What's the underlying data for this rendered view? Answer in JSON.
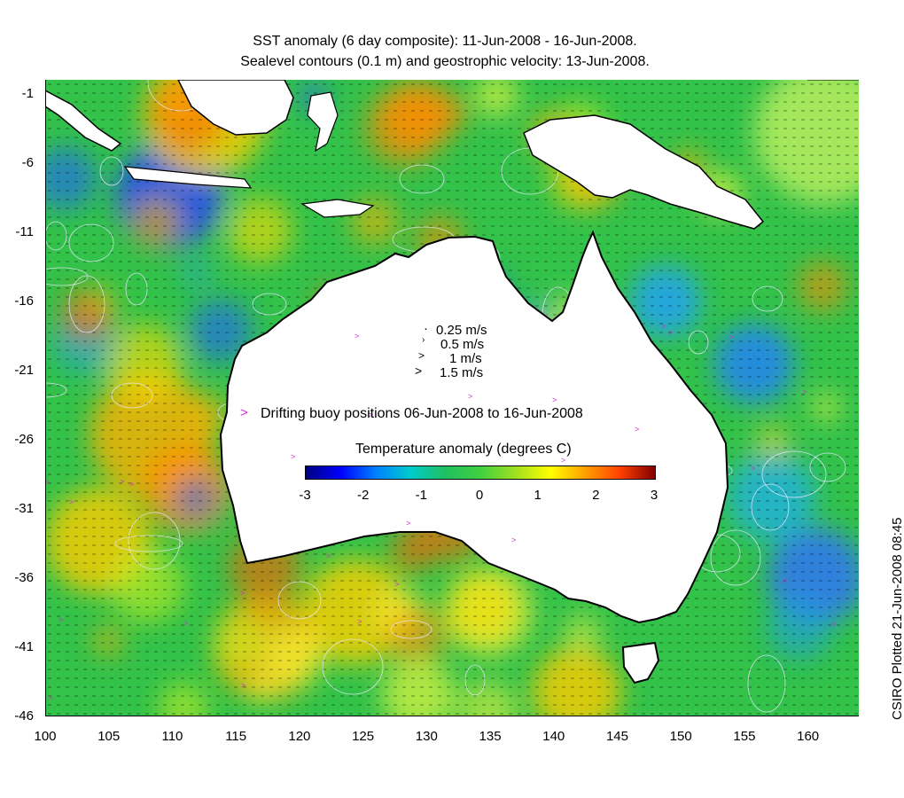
{
  "title": {
    "line1": "SST anomaly (6 day composite): 11-Jun-2008 - 16-Jun-2008.",
    "line2": "Sealevel contours (0.1 m) and geostrophic velocity: 13-Jun-2008."
  },
  "axes": {
    "x_ticks": [
      "100",
      "105",
      "110",
      "115",
      "120",
      "125",
      "130",
      "135",
      "140",
      "145",
      "150",
      "155",
      "160"
    ],
    "y_ticks": [
      "-1",
      "-6",
      "-11",
      "-16",
      "-21",
      "-26",
      "-31",
      "-36",
      "-41",
      "-46"
    ],
    "lon_range": [
      100,
      164
    ],
    "lat_range": [
      -46,
      0
    ]
  },
  "velocity_legend": [
    {
      "label": "0.25 m/s",
      "speed": 0.25
    },
    {
      "label": "0.5 m/s",
      "speed": 0.5
    },
    {
      "label": "1 m/s",
      "speed": 1
    },
    {
      "label": "1.5 m/s",
      "speed": 1.5
    }
  ],
  "buoy_legend": {
    "label": "Drifting buoy positions 06-Jun-2008 to 16-Jun-2008",
    "marker": ">",
    "color": "#cc33cc"
  },
  "colorbar": {
    "title": "Temperature anomaly (degrees C)",
    "ticks": [
      "-3",
      "-2",
      "-1",
      "0",
      "1",
      "2",
      "3"
    ],
    "range": [
      -3,
      3
    ],
    "colors": [
      "#00007f",
      "#0000ff",
      "#0080ff",
      "#00cccc",
      "#20c060",
      "#40d040",
      "#a0e020",
      "#ffff00",
      "#ffa000",
      "#ff4000",
      "#7f0000"
    ]
  },
  "credit": "CSIRO Plotted 21-Jun-2008 08:45",
  "map_colors": {
    "land": "#ffffff",
    "coast": "#000000",
    "contour": "#e8e8ff",
    "ocean_base": "#33c24a"
  }
}
